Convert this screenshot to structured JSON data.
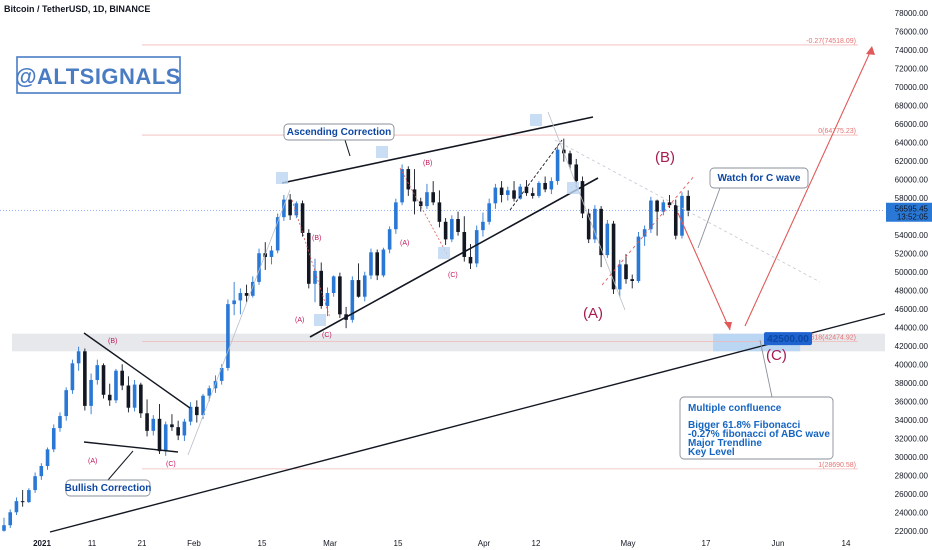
{
  "chart_data": {
    "type": "candlestick",
    "title": "Bitcoin / TetherUSD, 1D, BINANCE",
    "brand": "@ALTSIGNALS",
    "ylim": [
      21000,
      78000
    ],
    "y_ticks": [
      22000,
      24000,
      26000,
      28000,
      30000,
      32000,
      34000,
      36000,
      38000,
      40000,
      42000,
      44000,
      46000,
      48000,
      50000,
      52000,
      54000,
      56000,
      58000,
      60000,
      62000,
      64000,
      66000,
      68000,
      70000,
      72000,
      74000,
      76000,
      78000
    ],
    "y_tick_labels": [
      "22000.00",
      "24000.00",
      "26000.00",
      "28000.00",
      "30000.00",
      "32000.00",
      "34000.00",
      "36000.00",
      "38000.00",
      "40000.00",
      "42000.00",
      "44000.00",
      "46000.00",
      "48000.00",
      "50000.00",
      "52000.00",
      "54000.00",
      "56000.00",
      "58000.00",
      "60000.00",
      "62000.00",
      "64000.00",
      "66000.00",
      "68000.00",
      "70000.00",
      "72000.00",
      "74000.00",
      "76000.00",
      "78000.00"
    ],
    "x_ticks": [
      "2021",
      "11",
      "21",
      "Feb",
      "15",
      "Mar",
      "15",
      "Apr",
      "12",
      "May",
      "17",
      "Jun",
      "14"
    ],
    "current_price": {
      "value": 56595.45,
      "label": "56595.45",
      "countdown": "13:52:05"
    },
    "target_badge": {
      "value": 42500,
      "label": "42500.00"
    },
    "fib_levels": [
      {
        "value": 74518.09,
        "label": "-0.27(74518.09)"
      },
      {
        "value": 64775.23,
        "label": "0(64775.23)"
      },
      {
        "value": 42474.92,
        "label": "0.618(42474.92)"
      },
      {
        "value": 28690.58,
        "label": "1(28690.58)"
      }
    ],
    "key_zone": {
      "low": 41400,
      "high": 43300
    },
    "candles": [
      [
        0,
        22000,
        23400,
        21900,
        22600
      ],
      [
        1,
        22600,
        24300,
        22300,
        24000
      ],
      [
        2,
        24000,
        25600,
        23700,
        25200
      ],
      [
        3,
        25200,
        26400,
        24600,
        25100
      ],
      [
        4,
        25100,
        26600,
        25000,
        26400
      ],
      [
        5,
        26400,
        28300,
        26100,
        27900
      ],
      [
        6,
        27900,
        29300,
        27500,
        29000
      ],
      [
        7,
        29000,
        31000,
        28600,
        30800
      ],
      [
        8,
        30800,
        33500,
        30500,
        33100
      ],
      [
        9,
        33100,
        34800,
        32700,
        34400
      ],
      [
        10,
        34400,
        37500,
        33900,
        37200
      ],
      [
        11,
        37200,
        40500,
        36800,
        40100
      ],
      [
        12,
        40100,
        41900,
        39300,
        41400
      ],
      [
        13,
        41400,
        41700,
        35000,
        35500
      ],
      [
        14,
        35500,
        39000,
        34600,
        38300
      ],
      [
        15,
        38300,
        40500,
        37800,
        39900
      ],
      [
        16,
        39900,
        40100,
        36300,
        36700
      ],
      [
        17,
        36700,
        37900,
        35500,
        36100
      ],
      [
        18,
        36100,
        39500,
        35800,
        39300
      ],
      [
        19,
        39300,
        40000,
        37200,
        37700
      ],
      [
        20,
        37700,
        38700,
        34800,
        35300
      ],
      [
        21,
        35300,
        38300,
        34900,
        37800
      ],
      [
        22,
        37800,
        38000,
        34200,
        34700
      ],
      [
        23,
        34700,
        36200,
        32200,
        32800
      ],
      [
        24,
        32800,
        34500,
        32300,
        34100
      ],
      [
        25,
        34100,
        35700,
        30300,
        30600
      ],
      [
        26,
        30600,
        33800,
        30100,
        33500
      ],
      [
        27,
        33500,
        34600,
        32800,
        33200
      ],
      [
        28,
        33200,
        33900,
        31800,
        32300
      ],
      [
        29,
        32300,
        34100,
        31700,
        33800
      ],
      [
        30,
        33800,
        35900,
        33400,
        35400
      ],
      [
        31,
        35400,
        36100,
        33700,
        34500
      ],
      [
        32,
        34500,
        36800,
        34100,
        36600
      ],
      [
        33,
        36600,
        37700,
        36000,
        37400
      ],
      [
        34,
        37400,
        38800,
        36900,
        38200
      ],
      [
        35,
        38200,
        40000,
        37800,
        39600
      ],
      [
        36,
        39600,
        47000,
        39300,
        46500
      ],
      [
        37,
        46500,
        48900,
        45300,
        46900
      ],
      [
        38,
        46900,
        48200,
        45400,
        47700
      ],
      [
        39,
        47700,
        48600,
        46700,
        47400
      ],
      [
        40,
        47400,
        49500,
        47200,
        48900
      ],
      [
        41,
        48900,
        52500,
        48600,
        52000
      ],
      [
        42,
        52000,
        53200,
        50200,
        51600
      ],
      [
        43,
        51600,
        52800,
        50800,
        52300
      ],
      [
        44,
        52300,
        56300,
        52000,
        55900
      ],
      [
        45,
        55900,
        58300,
        55500,
        57800
      ],
      [
        46,
        57800,
        58400,
        55600,
        56100
      ],
      [
        47,
        56100,
        57600,
        55800,
        57400
      ],
      [
        48,
        57400,
        57700,
        53800,
        54200
      ],
      [
        49,
        54200,
        54600,
        48200,
        48700
      ],
      [
        50,
        48700,
        51400,
        46700,
        50100
      ],
      [
        51,
        50100,
        51000,
        46000,
        46300
      ],
      [
        52,
        46300,
        48300,
        45200,
        47700
      ],
      [
        53,
        47700,
        49600,
        47300,
        49500
      ],
      [
        54,
        49500,
        49900,
        45000,
        45400
      ],
      [
        55,
        45400,
        46200,
        43900,
        44800
      ],
      [
        56,
        44800,
        49500,
        44500,
        49100
      ],
      [
        57,
        49100,
        50900,
        47200,
        47300
      ],
      [
        58,
        47300,
        50000,
        46800,
        49600
      ],
      [
        59,
        49600,
        52500,
        49200,
        52100
      ],
      [
        60,
        52100,
        52400,
        49100,
        49600
      ],
      [
        61,
        49600,
        52600,
        49400,
        52400
      ],
      [
        62,
        52400,
        54900,
        52000,
        54600
      ],
      [
        63,
        54600,
        57900,
        54100,
        57500
      ],
      [
        64,
        57500,
        61600,
        57200,
        61100
      ],
      [
        65,
        61100,
        61400,
        58200,
        58900
      ],
      [
        66,
        58900,
        61100,
        56200,
        57600
      ],
      [
        67,
        57600,
        58000,
        56500,
        57100
      ],
      [
        68,
        57100,
        59500,
        56800,
        58600
      ],
      [
        69,
        58600,
        59800,
        57200,
        57500
      ],
      [
        70,
        57500,
        58800,
        54800,
        55400
      ],
      [
        71,
        55400,
        55800,
        52900,
        53500
      ],
      [
        72,
        53500,
        56100,
        53200,
        55700
      ],
      [
        73,
        55700,
        56500,
        53900,
        54300
      ],
      [
        74,
        54300,
        56000,
        51100,
        51600
      ],
      [
        75,
        51600,
        53000,
        50300,
        50900
      ],
      [
        76,
        50900,
        55000,
        50500,
        54500
      ],
      [
        77,
        54500,
        56400,
        53800,
        55400
      ],
      [
        78,
        55400,
        57900,
        55100,
        57400
      ],
      [
        79,
        57400,
        59500,
        56800,
        59100
      ],
      [
        80,
        59100,
        59800,
        57500,
        58300
      ],
      [
        81,
        58300,
        59200,
        57700,
        58800
      ],
      [
        82,
        58800,
        59800,
        57600,
        57900
      ],
      [
        83,
        57900,
        59500,
        57800,
        59200
      ],
      [
        84,
        59200,
        59900,
        58200,
        58500
      ],
      [
        85,
        58500,
        59100,
        57900,
        58200
      ],
      [
        86,
        58200,
        59800,
        58000,
        59600
      ],
      [
        87,
        59600,
        60300,
        58600,
        58900
      ],
      [
        88,
        58900,
        60200,
        58400,
        59800
      ],
      [
        89,
        59800,
        63600,
        59400,
        63200
      ],
      [
        90,
        63200,
        64400,
        61900,
        62800
      ],
      [
        91,
        62800,
        63100,
        61100,
        61600
      ],
      [
        92,
        61600,
        62200,
        59100,
        59800
      ],
      [
        93,
        59800,
        60300,
        55800,
        56300
      ],
      [
        94,
        56300,
        56800,
        53100,
        53500
      ],
      [
        95,
        53500,
        57200,
        53100,
        56800
      ],
      [
        96,
        56800,
        57100,
        50500,
        51800
      ],
      [
        97,
        51800,
        55600,
        51500,
        55200
      ],
      [
        98,
        55200,
        55500,
        47600,
        48100
      ],
      [
        99,
        48100,
        51300,
        47300,
        50800
      ],
      [
        100,
        50800,
        51900,
        48700,
        49200
      ],
      [
        101,
        49200,
        49700,
        48200,
        49000
      ],
      [
        102,
        49000,
        54300,
        48800,
        53800
      ],
      [
        103,
        53800,
        55000,
        52800,
        54600
      ],
      [
        104,
        54600,
        58100,
        54200,
        57700
      ],
      [
        105,
        57700,
        57800,
        53900,
        56500
      ],
      [
        106,
        56500,
        57800,
        56100,
        57500
      ],
      [
        107,
        57500,
        58300,
        56900,
        57200
      ],
      [
        108,
        57200,
        57800,
        53500,
        53900
      ],
      [
        109,
        53900,
        58600,
        53600,
        58200
      ],
      [
        110,
        58200,
        58800,
        56000,
        56600
      ]
    ],
    "annotations": {
      "ascending_correction": "Ascending Correction",
      "bullish_correction": "Bullish Correction",
      "watch_for_c": "Watch for C wave",
      "confluence_title": "Multiple confluence",
      "confluence_lines": [
        "Bigger 61.8% Fibonacci",
        "-0.27% fibonacci of ABC wave",
        "Major Trendline",
        "Key Level"
      ],
      "wave_small": [
        "(A)",
        "(B)",
        "(C)",
        "(A)",
        "(B)",
        "(C)",
        "(A)",
        "(B)",
        "(C)"
      ],
      "wave_large": [
        "(A)",
        "(B)",
        "(C)"
      ]
    }
  }
}
